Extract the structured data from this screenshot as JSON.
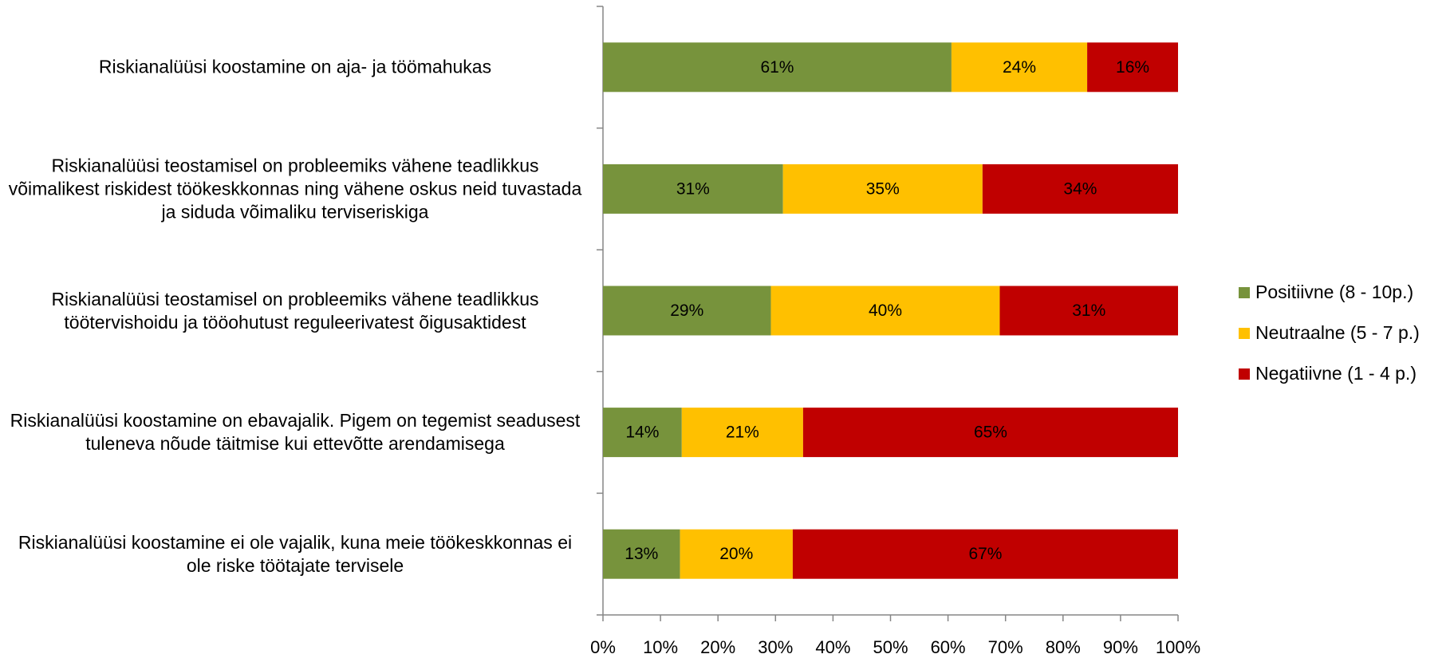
{
  "chart_data": {
    "type": "stacked-barh",
    "categories": [
      "Riskianalüüsi koostamine on aja- ja töömahukas",
      "Riskianalüüsi teostamisel on probleemiks vähene teadlikkus võimalikest riskidest töökeskkonnas ning vähene oskus neid tuvastada ja siduda võimaliku terviseriskiga",
      "Riskianalüüsi teostamisel on probleemiks vähene teadlikkus töötervishoidu ja tööohutust reguleerivatest õigusaktidest",
      "Riskianalüüsi koostamine on ebavajalik. Pigem on tegemist seadusest tuleneva nõude täitmise kui ettevõtte arendamisega",
      "Riskianalüüsi koostamine ei ole vajalik, kuna meie töökeskkonnas ei ole riske töötajate tervisele"
    ],
    "series": [
      {
        "name": "Positiivne (8 - 10p.)",
        "color": "#77933c",
        "values": [
          60.6,
          31.3,
          29.2,
          13.7,
          13.4
        ],
        "value_labels": [
          "61%",
          "31%",
          "29%",
          "14%",
          "13%"
        ]
      },
      {
        "name": "Neutraalne (5 - 7 p.)",
        "color": "#ffc000",
        "values": [
          23.6,
          34.7,
          39.8,
          21.1,
          19.6
        ],
        "value_labels": [
          "24%",
          "35%",
          "40%",
          "21%",
          "20%"
        ]
      },
      {
        "name": "Negatiivne (1 - 4 p.)",
        "color": "#c00000",
        "values": [
          15.8,
          34.0,
          31.0,
          65.2,
          67.0
        ],
        "value_labels": [
          "16%",
          "34%",
          "31%",
          "65%",
          "67%"
        ]
      }
    ],
    "xlim": [
      0,
      100
    ],
    "xticks": [
      {
        "value": 0,
        "label": "0%"
      },
      {
        "value": 10,
        "label": "10%"
      },
      {
        "value": 20,
        "label": "20%"
      },
      {
        "value": 30,
        "label": "30%"
      },
      {
        "value": 40,
        "label": "40%"
      },
      {
        "value": 50,
        "label": "50%"
      },
      {
        "value": 60,
        "label": "60%"
      },
      {
        "value": 70,
        "label": "70%"
      },
      {
        "value": 80,
        "label": "80%"
      },
      {
        "value": 90,
        "label": "90%"
      },
      {
        "value": 100,
        "label": "100%"
      }
    ],
    "legend": "right"
  }
}
